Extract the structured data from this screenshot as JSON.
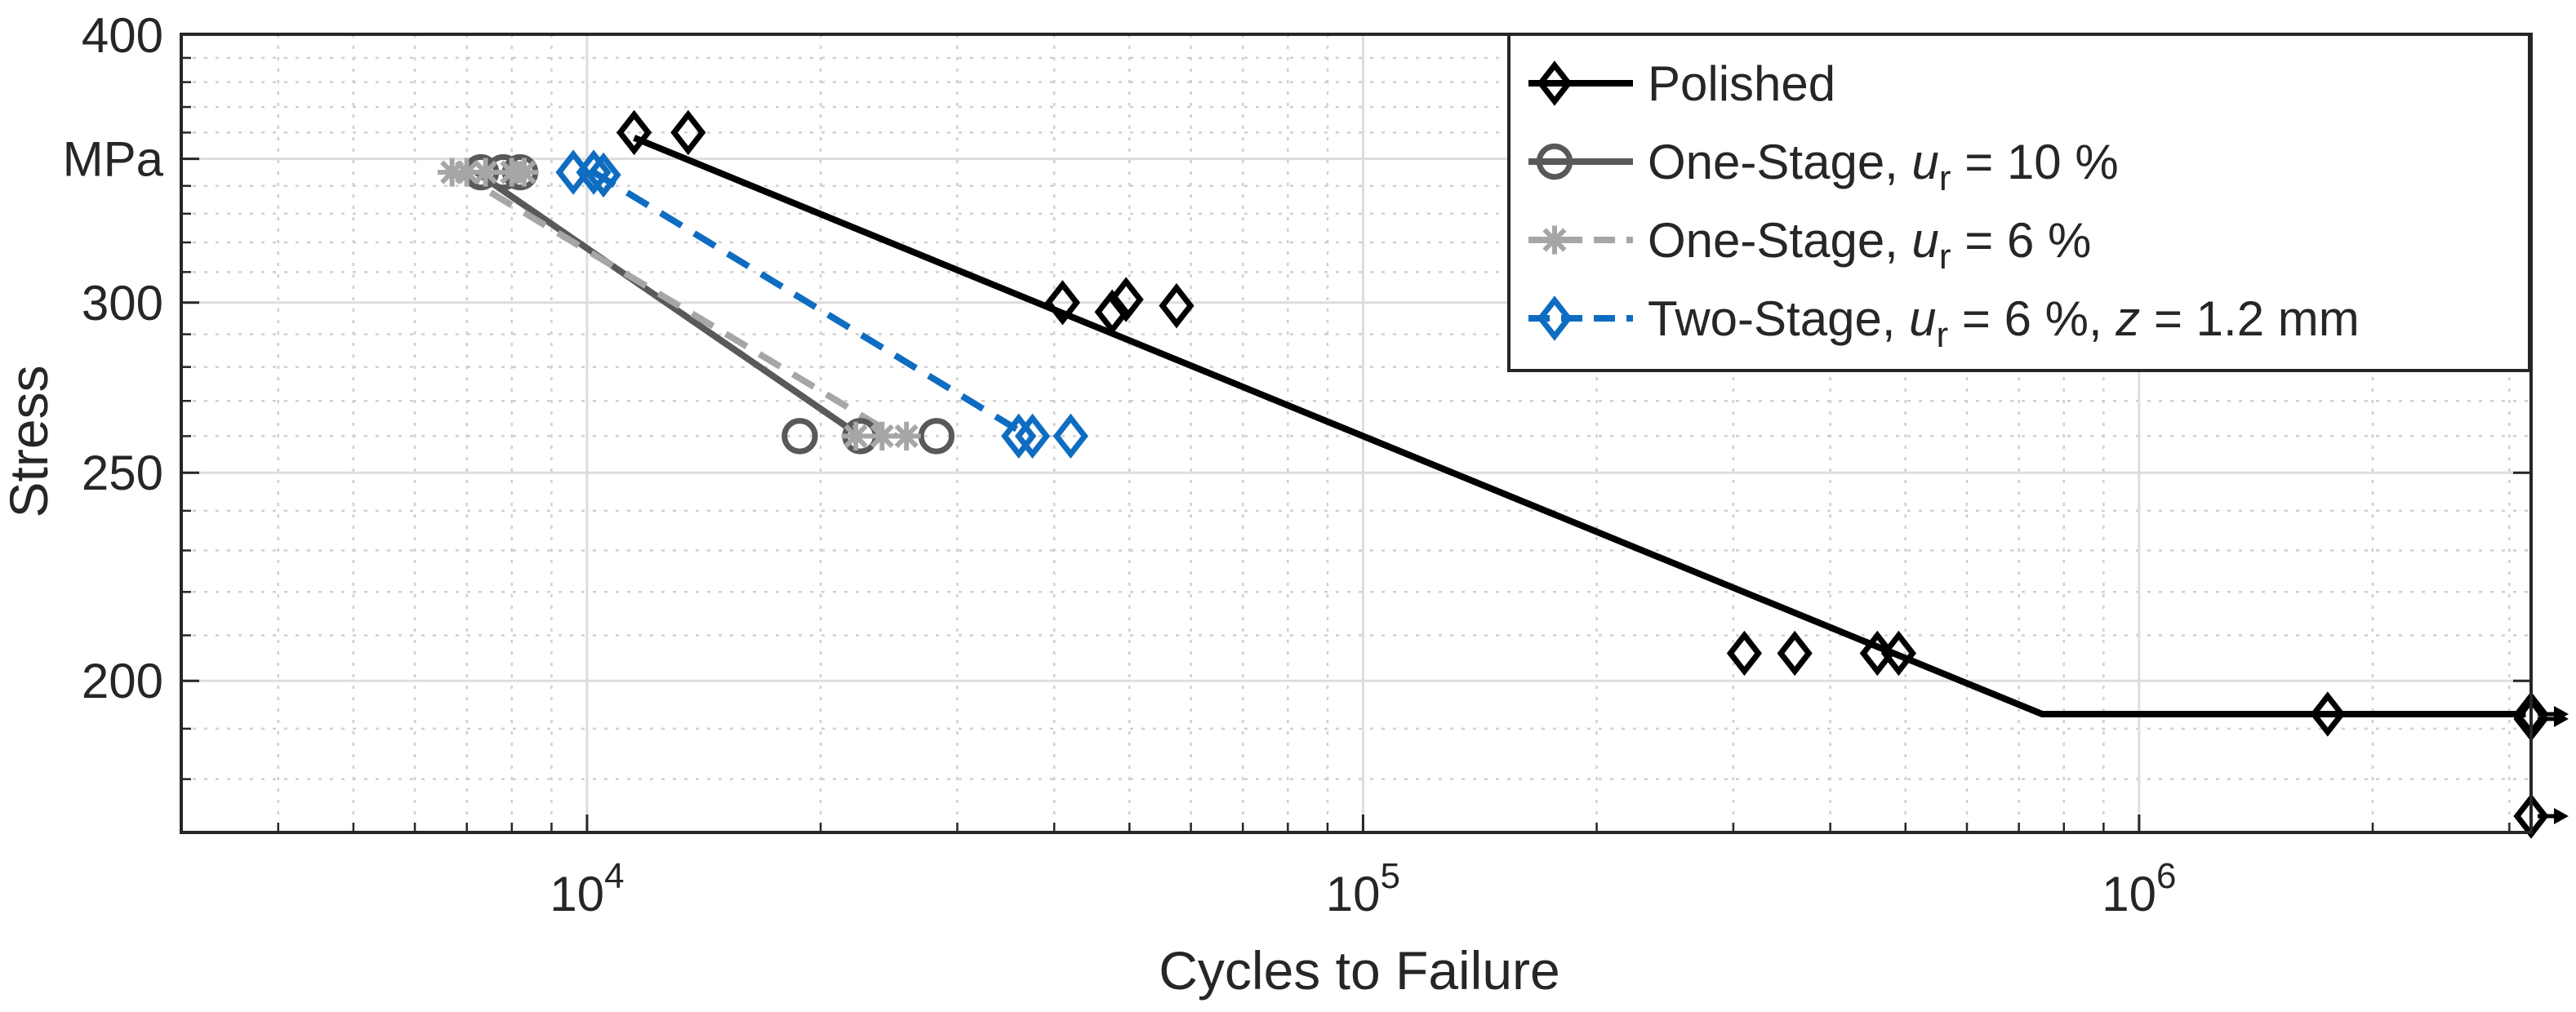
{
  "chart_data": {
    "type": "scatter",
    "xlabel": "Cycles to Failure",
    "ylabel": "Stress",
    "yunit": "MPa",
    "xscale": "log",
    "yscale": "log",
    "xlim": [
      3000,
      3200000
    ],
    "ylim": [
      170,
      400
    ],
    "x_ticks": [
      {
        "value": 10000,
        "base": "10",
        "exp": "4"
      },
      {
        "value": 100000,
        "base": "10",
        "exp": "5"
      },
      {
        "value": 1000000,
        "base": "10",
        "exp": "6"
      }
    ],
    "y_ticks": [
      {
        "value": 200,
        "label": "200"
      },
      {
        "value": 250,
        "label": "250"
      },
      {
        "value": 300,
        "label": "300"
      },
      {
        "value": 400,
        "label": "400"
      }
    ],
    "grid": true,
    "legend_position": "top-right",
    "series": [
      {
        "name": "Polished",
        "color": "#000000",
        "marker": "diamond",
        "line_style": "solid",
        "points": [
          {
            "x": 11500,
            "y": 360
          },
          {
            "x": 13500,
            "y": 360
          },
          {
            "x": 41000,
            "y": 300
          },
          {
            "x": 47500,
            "y": 297
          },
          {
            "x": 49500,
            "y": 301
          },
          {
            "x": 57500,
            "y": 299
          },
          {
            "x": 310000,
            "y": 206
          },
          {
            "x": 360000,
            "y": 206
          },
          {
            "x": 460000,
            "y": 206
          },
          {
            "x": 490000,
            "y": 206
          },
          {
            "x": 1750000,
            "y": 193
          },
          {
            "x": 3100000,
            "y": 193,
            "runout": true
          },
          {
            "x": 3100000,
            "y": 192,
            "runout": true
          },
          {
            "x": 3100000,
            "y": 173,
            "runout": true
          }
        ],
        "fit_line": [
          {
            "x": 11500,
            "y": 358
          },
          {
            "x": 750000,
            "y": 193
          },
          {
            "x": 3150000,
            "y": 193
          }
        ]
      },
      {
        "name": "One-Stage, u_r = 10 %",
        "label_prefix": "One-Stage, ",
        "label_var": "u",
        "label_sub": "r",
        "label_suffix": " = 10 %",
        "color": "#595959",
        "marker": "circle",
        "line_style": "solid",
        "points": [
          {
            "x": 7300,
            "y": 345
          },
          {
            "x": 7800,
            "y": 345
          },
          {
            "x": 8200,
            "y": 345
          },
          {
            "x": 18800,
            "y": 260
          },
          {
            "x": 22500,
            "y": 260
          },
          {
            "x": 28200,
            "y": 260
          }
        ],
        "fit_line": [
          {
            "x": 7200,
            "y": 345
          },
          {
            "x": 22500,
            "y": 260
          }
        ]
      },
      {
        "name": "One-Stage, u_r = 6 %",
        "label_prefix": "One-Stage, ",
        "label_var": "u",
        "label_sub": "r",
        "label_suffix": " = 6 %",
        "color": "#a6a6a6",
        "marker": "asterisk",
        "line_style": "dashed",
        "points": [
          {
            "x": 6700,
            "y": 345
          },
          {
            "x": 7000,
            "y": 345
          },
          {
            "x": 7400,
            "y": 345
          },
          {
            "x": 8000,
            "y": 345
          },
          {
            "x": 8300,
            "y": 345
          },
          {
            "x": 22200,
            "y": 260
          },
          {
            "x": 24000,
            "y": 260
          },
          {
            "x": 25800,
            "y": 260
          }
        ],
        "fit_line": [
          {
            "x": 6800,
            "y": 345
          },
          {
            "x": 25000,
            "y": 260
          }
        ]
      },
      {
        "name": "Two-Stage, u_r = 6 %, z = 1.2 mm",
        "label_prefix": "Two-Stage, ",
        "label_var": "u",
        "label_sub": "r",
        "label_suffix": " = 6 %, ",
        "label_var2": "z",
        "label_suffix2": " = 1.2 mm",
        "color": "#0e6dc1",
        "marker": "diamond",
        "line_style": "dashed",
        "points": [
          {
            "x": 9600,
            "y": 345
          },
          {
            "x": 10200,
            "y": 345
          },
          {
            "x": 10500,
            "y": 344
          },
          {
            "x": 36000,
            "y": 260
          },
          {
            "x": 37500,
            "y": 260
          },
          {
            "x": 42000,
            "y": 260
          }
        ],
        "fit_line": [
          {
            "x": 10200,
            "y": 345
          },
          {
            "x": 37000,
            "y": 260
          }
        ]
      }
    ]
  }
}
